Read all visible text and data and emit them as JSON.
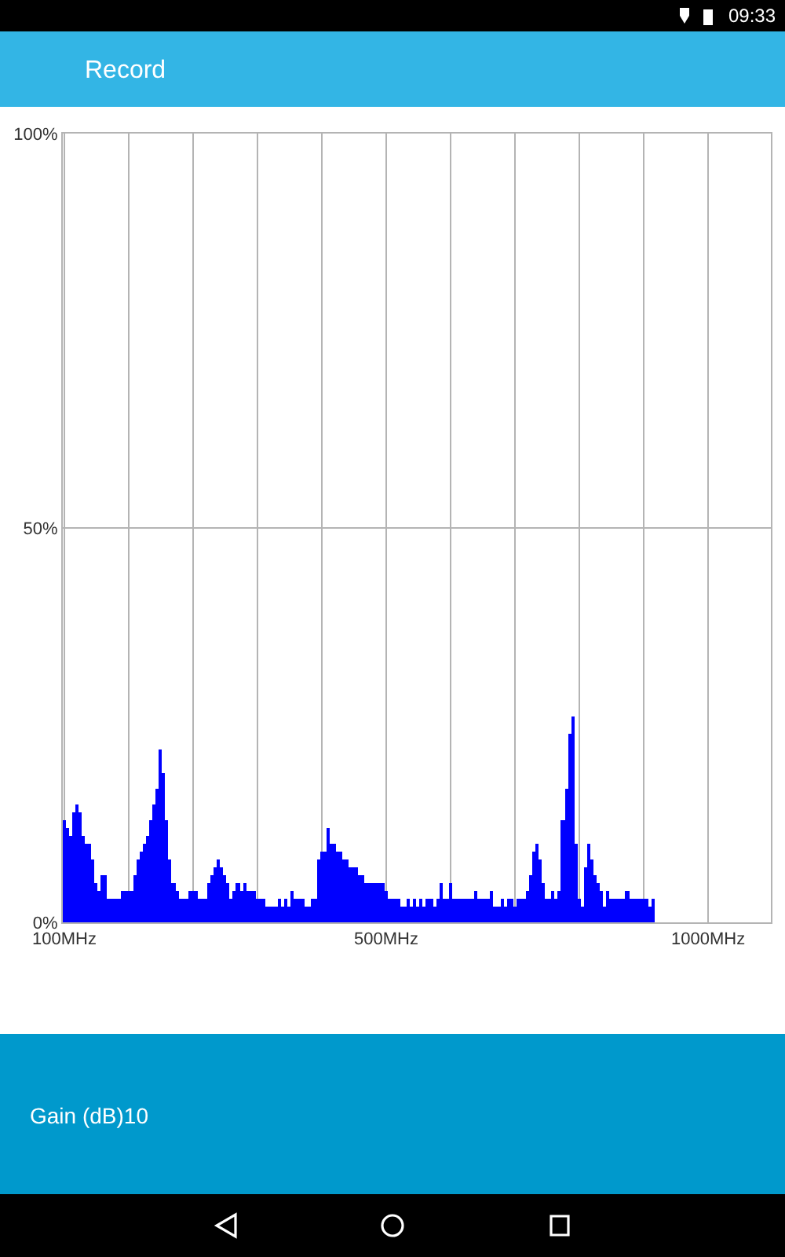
{
  "chart_data": {
    "type": "bar",
    "title": "Record",
    "categories": [
      "100MHz",
      null,
      null,
      null,
      null,
      null,
      null,
      null,
      null,
      null,
      null,
      null,
      null,
      null,
      null,
      null,
      null,
      null,
      null,
      null,
      null,
      null,
      null,
      null,
      null,
      null,
      null,
      null,
      null,
      null,
      null,
      null,
      null,
      null,
      null,
      null,
      null,
      null,
      null,
      null,
      null,
      null,
      null,
      null,
      null,
      null,
      null,
      null,
      null,
      null,
      null,
      null,
      null,
      null,
      null,
      null,
      null,
      null,
      null,
      null,
      null,
      null,
      null,
      null,
      null,
      null,
      null,
      null,
      null,
      null,
      null,
      null,
      null,
      null,
      null,
      null,
      null,
      null,
      null,
      null,
      null,
      null,
      null,
      null,
      null,
      null,
      null,
      null,
      null,
      null,
      null,
      null,
      null,
      null,
      null,
      null,
      null,
      null,
      null,
      null,
      "500MHz",
      null,
      null,
      null,
      null,
      null,
      null,
      null,
      null,
      null,
      null,
      null,
      null,
      null,
      null,
      null,
      null,
      null,
      null,
      null,
      null,
      null,
      null,
      null,
      null,
      null,
      null,
      null,
      null,
      null,
      null,
      null,
      null,
      null,
      null,
      null,
      null,
      null,
      null,
      null,
      null,
      null,
      null,
      null,
      null,
      null,
      null,
      null,
      null,
      null,
      null,
      null,
      null,
      null,
      null,
      null,
      null,
      null,
      null,
      null,
      null,
      null,
      null,
      null,
      null,
      null,
      null,
      null,
      null,
      null,
      null,
      null,
      null,
      null,
      null,
      null,
      null,
      null,
      null,
      null,
      null,
      null,
      null,
      null,
      null,
      null,
      null,
      null,
      null,
      null,
      null,
      null,
      null,
      null,
      null,
      null,
      null,
      null,
      null,
      null,
      "1000MHz",
      null,
      null,
      null,
      null,
      null,
      null,
      null,
      null,
      null,
      null,
      null,
      null,
      null,
      null,
      null,
      null,
      null,
      null,
      null
    ],
    "values": [
      13,
      12,
      11,
      14,
      15,
      14,
      11,
      10,
      10,
      8,
      5,
      4,
      6,
      6,
      3,
      3,
      3,
      3,
      4,
      4,
      4,
      4,
      6,
      8,
      9,
      10,
      11,
      13,
      15,
      17,
      22,
      19,
      13,
      8,
      5,
      4,
      3,
      3,
      3,
      4,
      4,
      4,
      3,
      3,
      3,
      5,
      6,
      7,
      8,
      7,
      6,
      5,
      3,
      4,
      5,
      4,
      5,
      4,
      4,
      4,
      3,
      3,
      3,
      2,
      2,
      2,
      2,
      3,
      2,
      3,
      2,
      4,
      3,
      3,
      3,
      2,
      2,
      3,
      3,
      8,
      9,
      9,
      12,
      10,
      10,
      9,
      9,
      8,
      8,
      7,
      7,
      7,
      6,
      6,
      5,
      5,
      5,
      5,
      5,
      5,
      4,
      3,
      3,
      3,
      3,
      2,
      2,
      3,
      2,
      3,
      2,
      3,
      2,
      3,
      3,
      2,
      3,
      5,
      3,
      3,
      5,
      3,
      3,
      3,
      3,
      3,
      3,
      3,
      4,
      3,
      3,
      3,
      3,
      4,
      2,
      2,
      3,
      2,
      3,
      3,
      2,
      3,
      3,
      3,
      4,
      6,
      9,
      10,
      8,
      5,
      3,
      3,
      4,
      3,
      4,
      13,
      17,
      24,
      26,
      10,
      3,
      2,
      7,
      10,
      8,
      6,
      5,
      4,
      2,
      4,
      3,
      3,
      3,
      3,
      3,
      4,
      3,
      3,
      3,
      3,
      3,
      3,
      2,
      3,
      null,
      null,
      null,
      null,
      null,
      null,
      null,
      null,
      null,
      null,
      null,
      null,
      null,
      null,
      null,
      null,
      null,
      null,
      null,
      null,
      null,
      null,
      null,
      null,
      null,
      null,
      null,
      null,
      null,
      null,
      null,
      null,
      null,
      null,
      null,
      null
    ],
    "color": "#0000ff",
    "ylim": [
      0,
      100
    ],
    "yticks": [
      {
        "value": 0,
        "label": "0%"
      },
      {
        "value": 50,
        "label": "50%"
      },
      {
        "value": 100,
        "label": "100%"
      }
    ],
    "grid": true,
    "annotations": [
      "Gain (dB)10",
      "09:33"
    ]
  }
}
